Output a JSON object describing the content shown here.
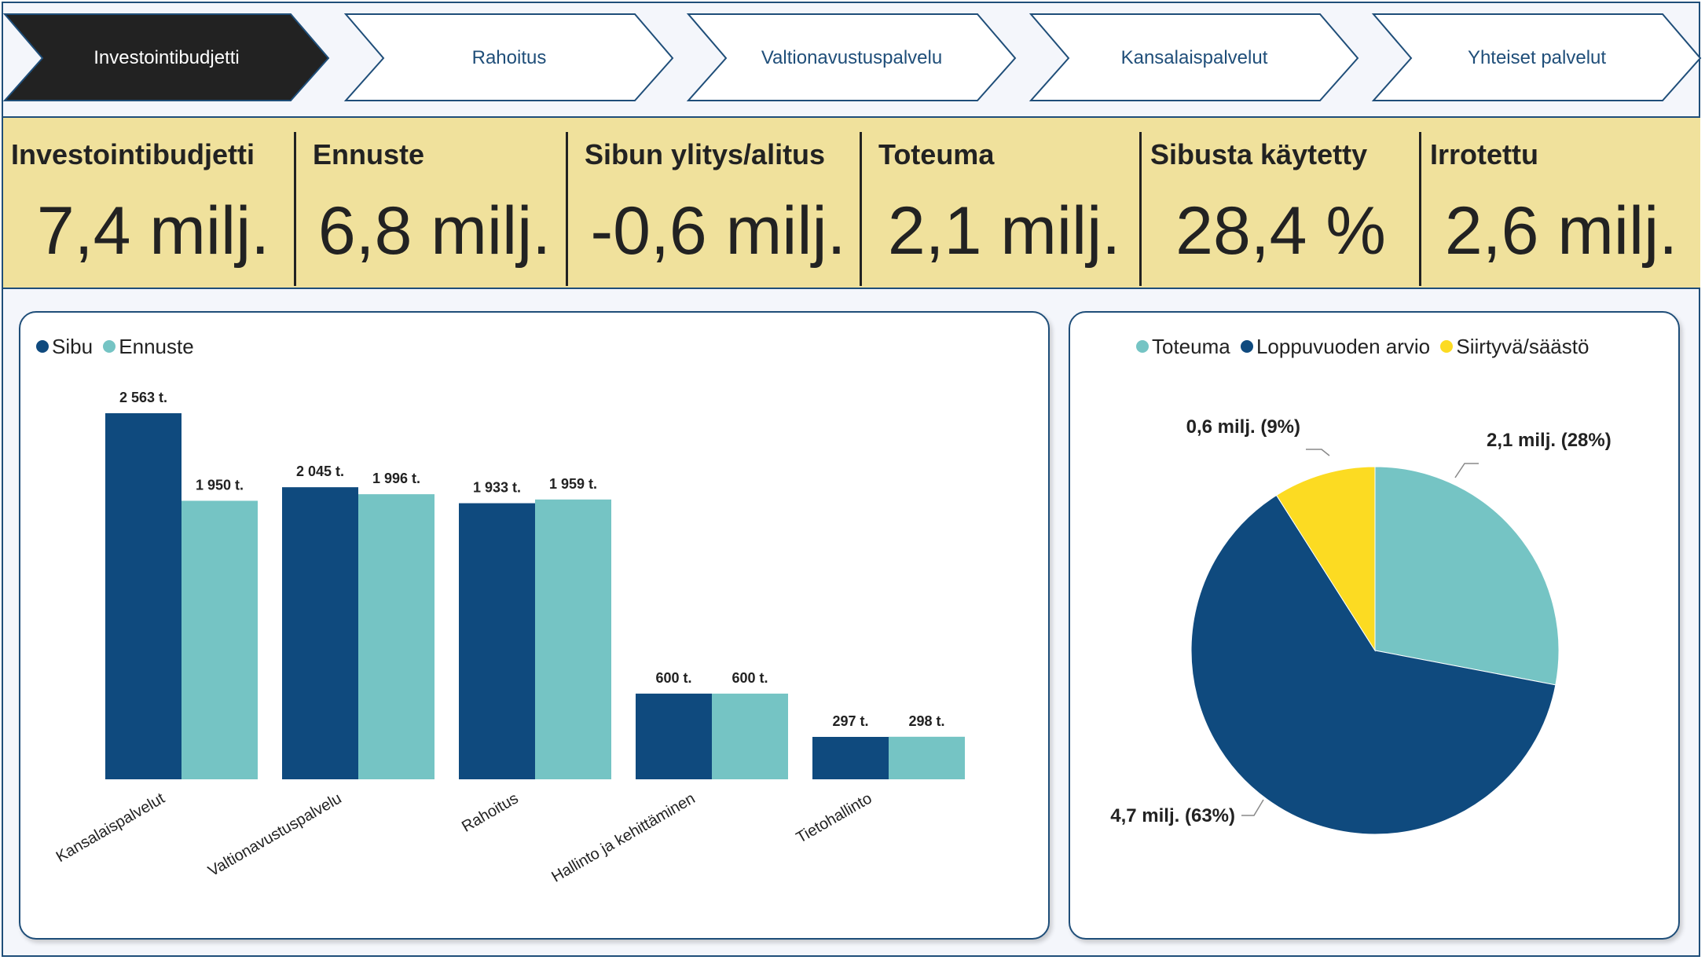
{
  "nav": {
    "tabs": [
      {
        "label": "Investointibudjetti",
        "active": true
      },
      {
        "label": "Rahoitus",
        "active": false
      },
      {
        "label": "Valtionavustuspalvelu",
        "active": false
      },
      {
        "label": "Kansalaispalvelut",
        "active": false
      },
      {
        "label": "Yhteiset palvelut",
        "active": false
      }
    ]
  },
  "kpis": [
    {
      "title": "Investointibudjetti",
      "value": "7,4 milj."
    },
    {
      "title": "Ennuste",
      "value": "6,8 milj."
    },
    {
      "title": "Sibun ylitys/alitus",
      "value": "-0,6 milj."
    },
    {
      "title": "Toteuma",
      "value": "2,1 milj."
    },
    {
      "title": "Sibusta käytetty",
      "value": "28,4 %"
    },
    {
      "title": "Irrotettu",
      "value": "2,6 milj."
    }
  ],
  "colors": {
    "navy": "#0f4a7e",
    "teal": "#75c4c4",
    "yellow": "#fcdb22",
    "kpi_bg": "#f0e19c",
    "active_tab": "#222222"
  },
  "chart_data": [
    {
      "type": "bar",
      "categories": [
        "Kansalaispalvelut",
        "Valtionavustuspalvelu",
        "Rahoitus",
        "Hallinto ja kehittäminen",
        "Tietohallinto"
      ],
      "series": [
        {
          "name": "Sibu",
          "values": [
            2563,
            2045,
            1933,
            600,
            297
          ],
          "labels": [
            "2 563 t.",
            "2 045 t.",
            "1 933 t.",
            "600 t.",
            "297 t."
          ],
          "color": "#0f4a7e"
        },
        {
          "name": "Ennuste",
          "values": [
            1950,
            1996,
            1959,
            600,
            298
          ],
          "labels": [
            "1 950 t.",
            "1 996 t.",
            "1 959 t.",
            "600 t.",
            "298 t."
          ],
          "color": "#75c4c4"
        }
      ],
      "ylim": [
        0,
        2563
      ],
      "legend_position": "top-left",
      "grid": false
    },
    {
      "type": "pie",
      "slices": [
        {
          "name": "Toteuma",
          "value": 28,
          "label": "2,1 milj. (28%)",
          "color": "#75c4c4"
        },
        {
          "name": "Loppuvuoden arvio",
          "value": 63,
          "label": "4,7 milj. (63%)",
          "color": "#0f4a7e"
        },
        {
          "name": "Siirtyvä/säästö",
          "value": 9,
          "label": "0,6 milj. (9%)",
          "color": "#fcdb22"
        }
      ],
      "legend_position": "top"
    }
  ]
}
